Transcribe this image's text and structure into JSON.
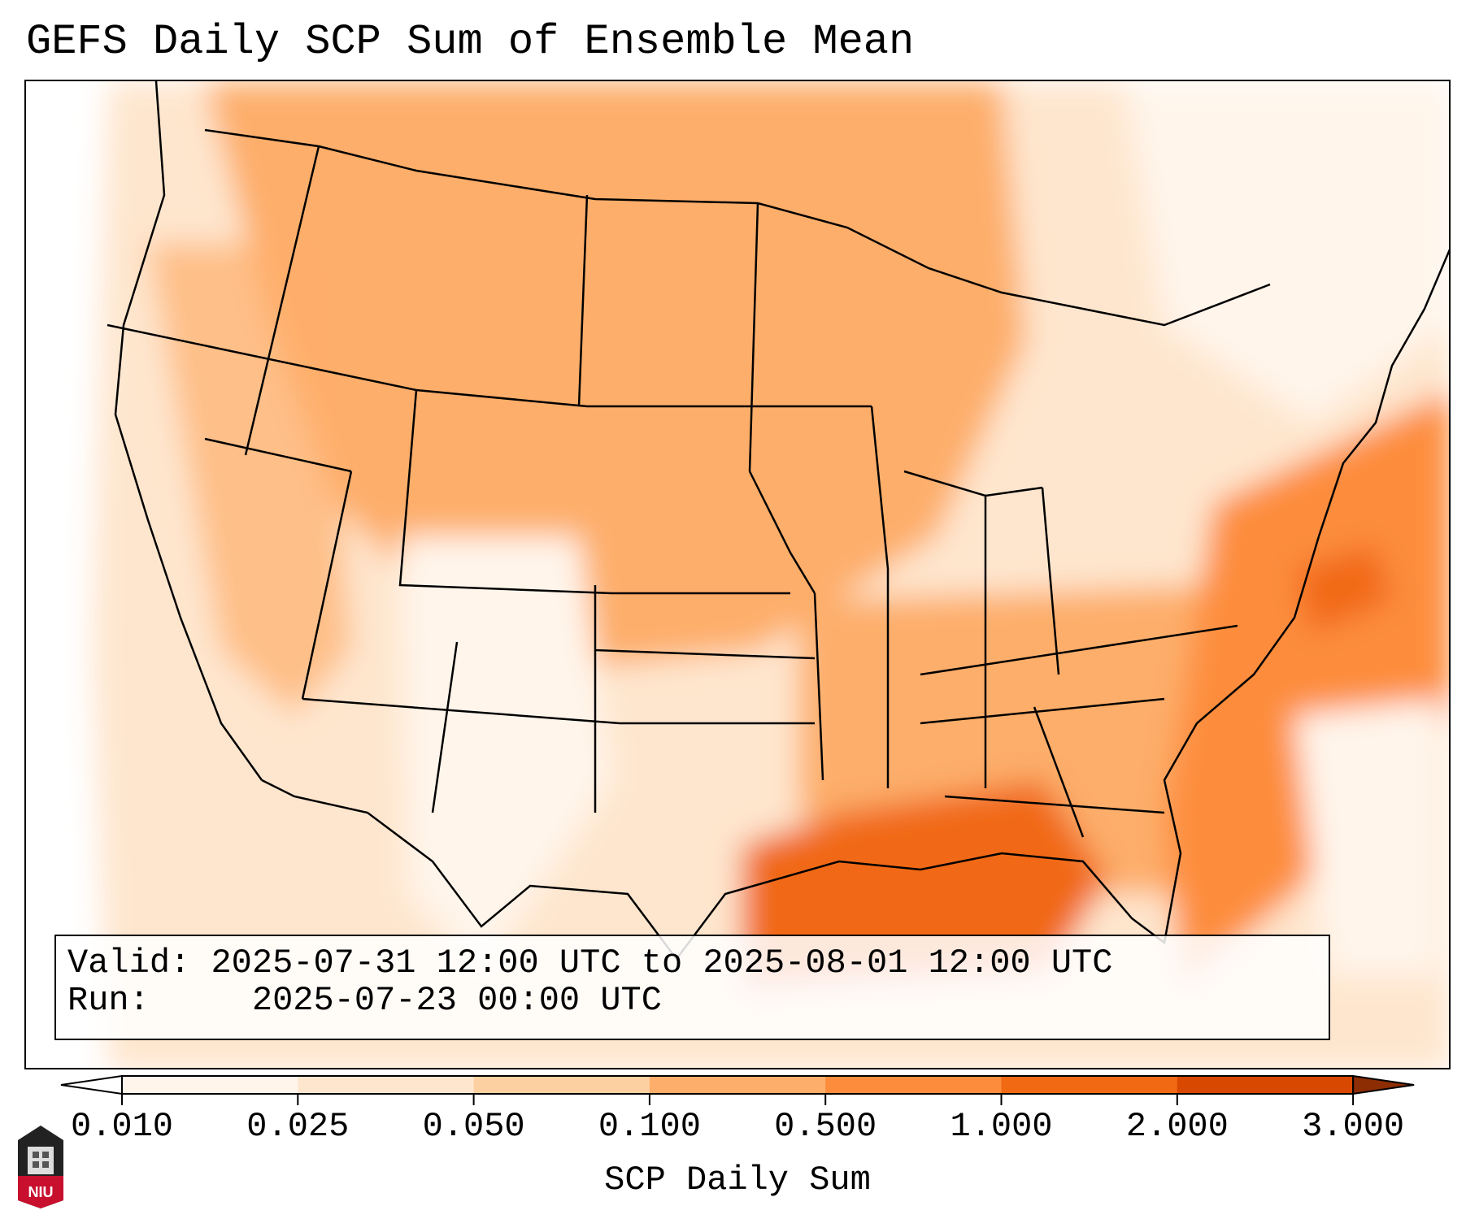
{
  "title": "GEFS Daily SCP Sum of Ensemble Mean",
  "info": {
    "valid_label": "Valid:",
    "valid_value": "2025-07-31 12:00 UTC to 2025-08-01 12:00 UTC",
    "run_label": "Run:",
    "run_value": "2025-07-23 00:00 UTC"
  },
  "colorbar": {
    "label": "SCP Daily Sum",
    "ticks": [
      "0.010",
      "0.025",
      "0.050",
      "0.100",
      "0.500",
      "1.000",
      "2.000",
      "3.000"
    ],
    "colors": [
      "#fff5eb",
      "#fee6ce",
      "#fdd0a2",
      "#fdae6b",
      "#fd8d3c",
      "#f16913",
      "#d94801",
      "#8c2d04"
    ],
    "under_color": "#ffffff",
    "over_color": "#8c2d04"
  },
  "logo": {
    "text": "NIU"
  }
}
